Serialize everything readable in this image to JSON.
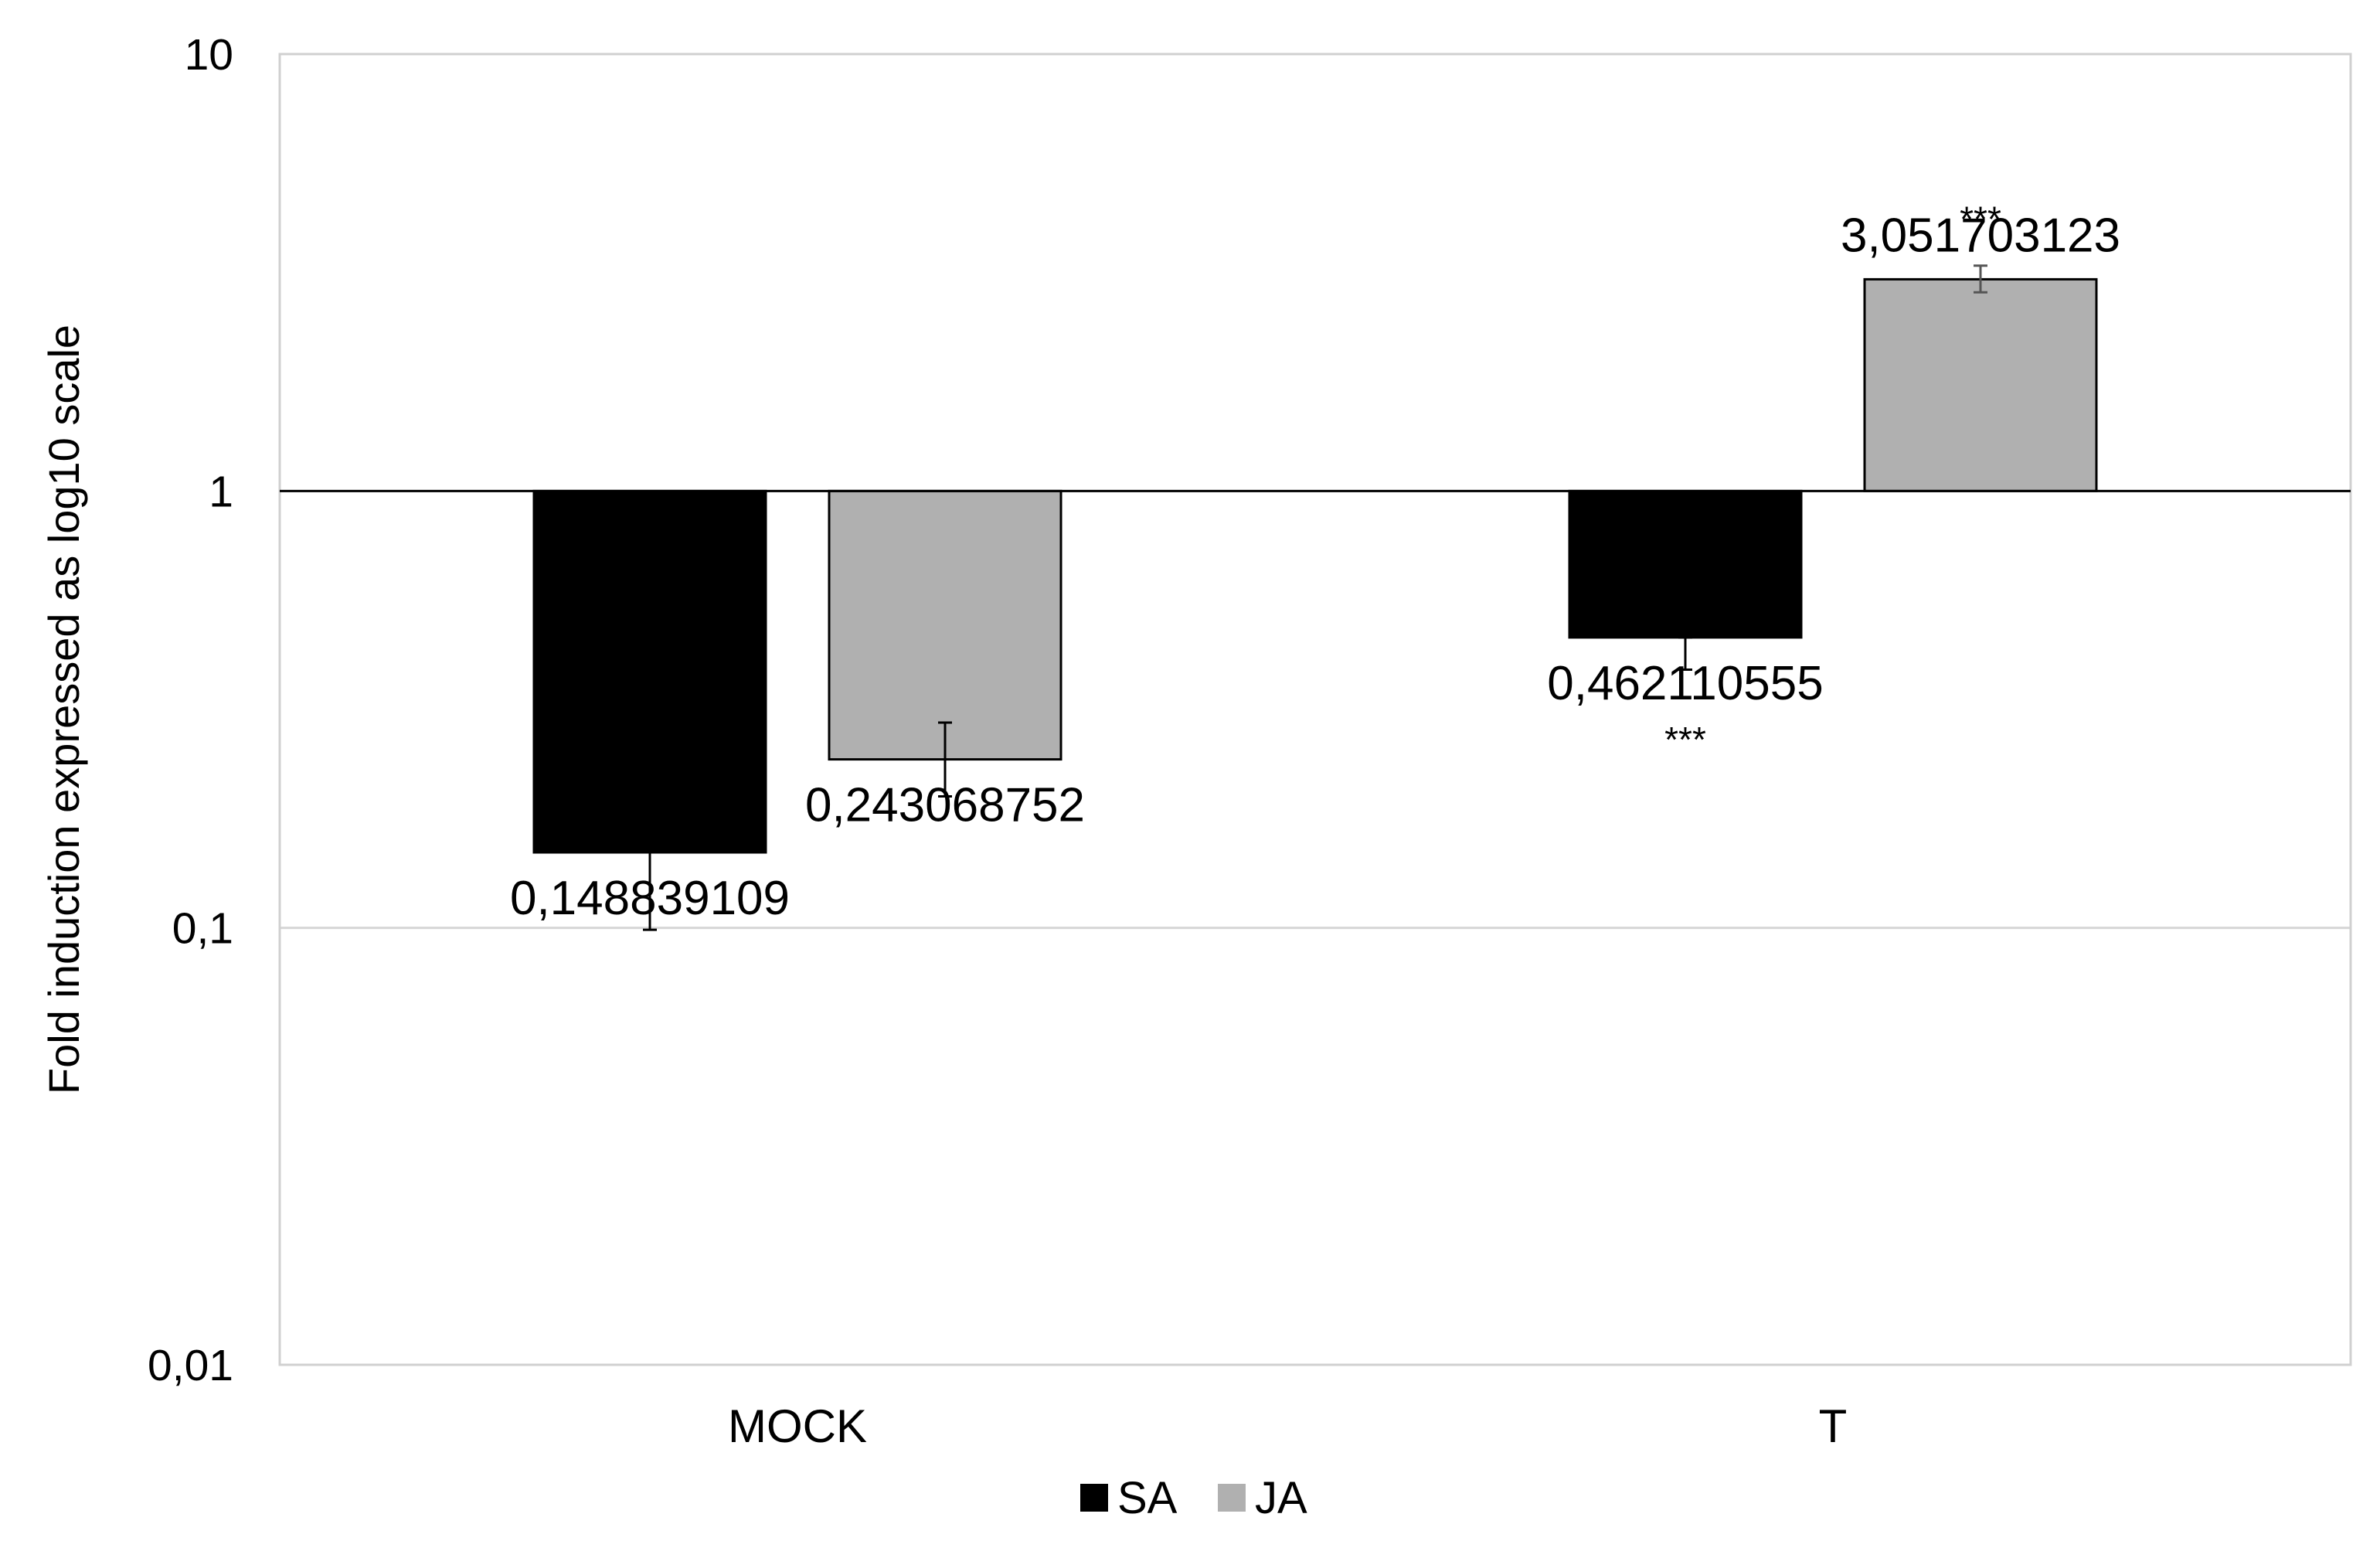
{
  "chart_data": {
    "type": "bar",
    "title": "",
    "xlabel": "",
    "ylabel": "Fold induction expressed as log10 scale",
    "yscale": "log",
    "baseline": 1,
    "ylim": [
      0.01,
      10
    ],
    "yticks": [
      {
        "value": 0.01,
        "label": "0,01"
      },
      {
        "value": 0.1,
        "label": "0,1"
      },
      {
        "value": 1,
        "label": "1"
      },
      {
        "value": 10,
        "label": "10"
      }
    ],
    "grid": true,
    "legend_position": "bottom-center",
    "categories": [
      "MOCK",
      "T"
    ],
    "series": [
      {
        "name": "SA",
        "color": "#000000",
        "values": [
          0.148839109,
          0.462110555
        ],
        "labels": [
          "0,148839109",
          "0,462110555"
        ],
        "error_low": [
          0.099,
          0.39
        ],
        "error_high": [
          0.148839109,
          0.462110555
        ],
        "significance": [
          "",
          "***"
        ]
      },
      {
        "name": "JA",
        "color": "#b0b0b0",
        "values": [
          0.243068752,
          3.051703123
        ],
        "labels": [
          "0,243068752",
          "3,051703123"
        ],
        "error_low": [
          0.2,
          2.85
        ],
        "error_high": [
          0.295,
          3.28
        ],
        "significance": [
          "",
          "***"
        ]
      }
    ]
  }
}
